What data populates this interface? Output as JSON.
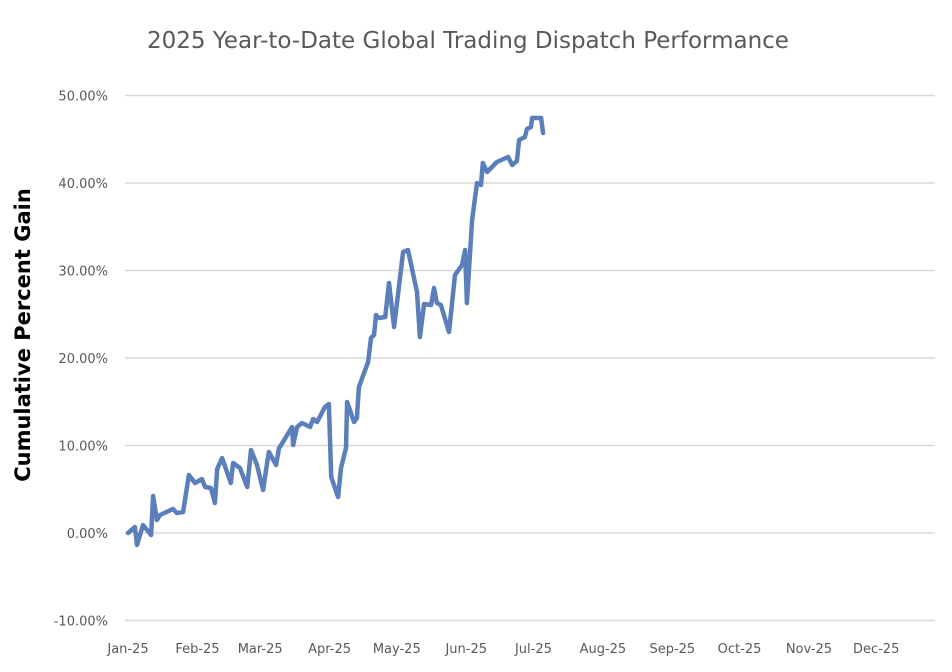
{
  "chart_data": {
    "type": "line",
    "title": "2025 Year-to-Date Global Trading Dispatch Performance",
    "xlabel": "",
    "ylabel": "Cumulative Percent Gain",
    "x_unit": "days since Jan 1, 2025",
    "xlim": [
      0,
      360
    ],
    "ylim": [
      -10,
      50
    ],
    "grid": true,
    "legend": "none",
    "color": "#5a7fba",
    "x_tick_labels": [
      {
        "day": 0,
        "label": "Jan-25"
      },
      {
        "day": 31,
        "label": "Feb-25"
      },
      {
        "day": 59,
        "label": "Mar-25"
      },
      {
        "day": 90,
        "label": "Apr-25"
      },
      {
        "day": 120,
        "label": "May-25"
      },
      {
        "day": 151,
        "label": "Jun-25"
      },
      {
        "day": 181,
        "label": "Jul-25"
      },
      {
        "day": 212,
        "label": "Aug-25"
      },
      {
        "day": 243,
        "label": "Sep-25"
      },
      {
        "day": 273,
        "label": "Oct-25"
      },
      {
        "day": 304,
        "label": "Nov-25"
      },
      {
        "day": 334,
        "label": "Dec-25"
      }
    ],
    "y_ticks": [
      {
        "value": -10,
        "label": "-10.00%"
      },
      {
        "value": 0,
        "label": "0.00%"
      },
      {
        "value": 10,
        "label": "10.00%"
      },
      {
        "value": 20,
        "label": "20.00%"
      },
      {
        "value": 30,
        "label": "30.00%"
      },
      {
        "value": 40,
        "label": "40.00%"
      },
      {
        "value": 50,
        "label": "50.00%"
      }
    ],
    "series": [
      {
        "name": "Cumulative Percent Gain",
        "points": [
          [
            0,
            0
          ],
          [
            3.1,
            0.69
          ],
          [
            4,
            -1.37
          ],
          [
            6.7,
            0.91
          ],
          [
            10.3,
            -0.23
          ],
          [
            11.2,
            4.23
          ],
          [
            12.9,
            1.49
          ],
          [
            14.3,
            2.06
          ],
          [
            20.1,
            2.74
          ],
          [
            21.8,
            2.29
          ],
          [
            24.6,
            2.4
          ],
          [
            27.2,
            6.63
          ],
          [
            29.9,
            5.71
          ],
          [
            33,
            6.17
          ],
          [
            34.4,
            5.26
          ],
          [
            37,
            5.14
          ],
          [
            38.8,
            3.43
          ],
          [
            39.8,
            7.31
          ],
          [
            42,
            8.57
          ],
          [
            45.9,
            5.71
          ],
          [
            46.9,
            8.0
          ],
          [
            50,
            7.43
          ],
          [
            53.2,
            5.26
          ],
          [
            54.9,
            9.49
          ],
          [
            57.6,
            7.77
          ],
          [
            60.3,
            4.91
          ],
          [
            62.1,
            8.0
          ],
          [
            62.9,
            9.26
          ],
          [
            66.1,
            7.77
          ],
          [
            67.4,
            9.71
          ],
          [
            69.2,
            10.4
          ],
          [
            73.2,
            12.11
          ],
          [
            73.7,
            10.06
          ],
          [
            75.5,
            12.11
          ],
          [
            77.7,
            12.57
          ],
          [
            81.3,
            12.11
          ],
          [
            82.6,
            13.03
          ],
          [
            84.4,
            12.69
          ],
          [
            87.9,
            14.4
          ],
          [
            89.7,
            14.74
          ],
          [
            90.7,
            6.4
          ],
          [
            93.8,
            4.11
          ],
          [
            95.1,
            7.43
          ],
          [
            97.3,
            9.71
          ],
          [
            97.8,
            14.97
          ],
          [
            100.9,
            12.69
          ],
          [
            102.2,
            13.14
          ],
          [
            103.1,
            16.69
          ],
          [
            107.2,
            19.54
          ],
          [
            108.5,
            22.29
          ],
          [
            109.8,
            22.63
          ],
          [
            110.7,
            24.91
          ],
          [
            112,
            24.57
          ],
          [
            114.8,
            24.69
          ],
          [
            116.5,
            28.57
          ],
          [
            118.8,
            23.54
          ],
          [
            122.8,
            32.11
          ],
          [
            125,
            32.34
          ],
          [
            129,
            27.54
          ],
          [
            130.3,
            22.4
          ],
          [
            132.2,
            26.17
          ],
          [
            135.3,
            26.06
          ],
          [
            136.6,
            28.0
          ],
          [
            137.9,
            26.29
          ],
          [
            139.7,
            26.06
          ],
          [
            143.3,
            22.97
          ],
          [
            146,
            29.49
          ],
          [
            149.1,
            30.63
          ],
          [
            150.5,
            32.34
          ],
          [
            151.3,
            26.29
          ],
          [
            153.6,
            35.77
          ],
          [
            155.8,
            40.0
          ],
          [
            157.6,
            39.77
          ],
          [
            158.4,
            42.29
          ],
          [
            160.3,
            41.26
          ],
          [
            164.7,
            42.4
          ],
          [
            169.7,
            42.97
          ],
          [
            171.5,
            42.06
          ],
          [
            173.6,
            42.51
          ],
          [
            174.6,
            44.91
          ],
          [
            177.2,
            45.26
          ],
          [
            178.1,
            46.17
          ],
          [
            179.9,
            46.4
          ],
          [
            180.4,
            47.43
          ],
          [
            184.4,
            47.43
          ],
          [
            185.3,
            45.71
          ]
        ]
      }
    ]
  }
}
